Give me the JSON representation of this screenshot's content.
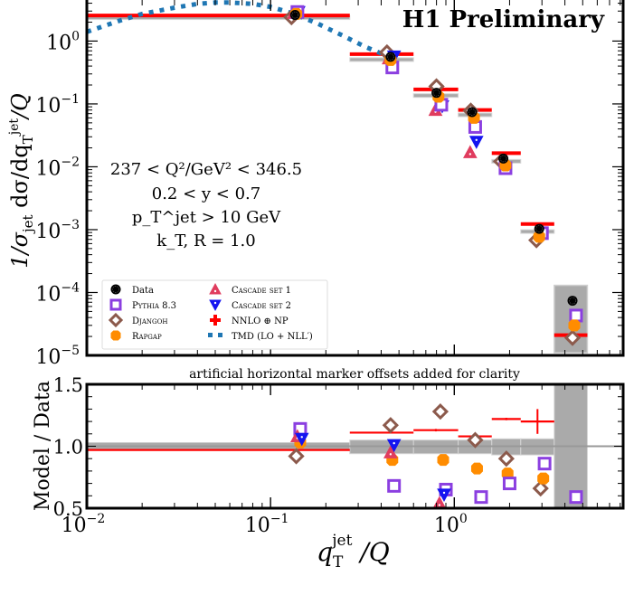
{
  "chart_data": [
    {
      "type": "scatter",
      "panel": "main",
      "title": "",
      "badge": "H1 Preliminary",
      "xlabel": "q_T^jet / Q",
      "ylabel": "1/σ_jet dσ/dq_T^jet/Q",
      "xscale": "log",
      "yscale": "log",
      "xlim": [
        0.01,
        8.3
      ],
      "ylim": [
        1e-05,
        4.5
      ],
      "y_ticks": [
        {
          "value": 1,
          "label": "10^0",
          "base": "10",
          "exp": "0"
        },
        {
          "value": 0.1,
          "label": "10^-1",
          "base": "10",
          "exp": "−1"
        },
        {
          "value": 0.01,
          "label": "10^-2",
          "base": "10",
          "exp": "−2"
        },
        {
          "value": 0.001,
          "label": "10^-3",
          "base": "10",
          "exp": "−3"
        },
        {
          "value": 0.0001,
          "label": "10^-4",
          "base": "10",
          "exp": "−4"
        },
        {
          "value": 1e-05,
          "label": "10^-5",
          "base": "10",
          "exp": "−5"
        }
      ],
      "annotations": [
        "237 < Q²/GeV² < 346.5",
        "0.2 < y < 0.7",
        "p_T^jet > 10 GeV",
        "k_T, R = 1.0"
      ],
      "bins": [
        [
          0.01,
          0.27
        ],
        [
          0.27,
          0.6
        ],
        [
          0.6,
          1.05
        ],
        [
          1.05,
          1.6
        ],
        [
          1.6,
          2.3
        ],
        [
          2.3,
          3.5
        ],
        [
          3.5,
          5.3
        ]
      ],
      "data": {
        "name": "Data",
        "x": [
          0.136,
          0.45,
          0.8,
          1.25,
          1.85,
          2.9,
          4.4
        ],
        "y": [
          2.6,
          0.56,
          0.15,
          0.074,
          0.0135,
          0.00103,
          7.4e-05
        ],
        "syst_band": [
          [
            2.45,
            2.75
          ],
          [
            0.52,
            0.59
          ],
          [
            0.14,
            0.16
          ],
          [
            0.069,
            0.078
          ],
          [
            0.0125,
            0.0145
          ],
          [
            0.00095,
            0.0011
          ],
          [
            1.1e-05,
            0.00013
          ]
        ]
      },
      "series": [
        {
          "name": "Pythia 8.3",
          "marker": "square",
          "color": "#8b3fe0",
          "x": [
            0.14,
            0.46,
            0.85,
            1.3,
            1.9,
            3.0,
            4.6
          ],
          "y": [
            2.9,
            0.38,
            0.097,
            0.043,
            0.0095,
            0.00088,
            4.3e-05
          ]
        },
        {
          "name": "Djangoh",
          "marker": "diamond",
          "color": "#8c5a4c",
          "x": [
            0.13,
            0.43,
            0.8,
            1.23,
            1.8,
            2.8,
            4.4
          ],
          "y": [
            2.4,
            0.66,
            0.19,
            0.078,
            0.0122,
            0.00068,
            1.9e-05
          ]
        },
        {
          "name": "Rapgap",
          "marker": "cross-blob",
          "color": "#ff8c00",
          "x": [
            0.138,
            0.45,
            0.82,
            1.28,
            1.9,
            2.9,
            4.5
          ],
          "y": [
            2.7,
            0.5,
            0.13,
            0.06,
            0.0105,
            0.00077,
            3e-05
          ]
        },
        {
          "name": "Cascade set 1",
          "marker": "triangle-up",
          "color": "#e03c5e",
          "x": [
            0.134,
            0.44,
            0.79,
            1.22
          ],
          "y": [
            2.8,
            0.53,
            0.08,
            0.017
          ]
        },
        {
          "name": "Cascade set 2",
          "marker": "triangle-down",
          "color": "#1515f0",
          "x": [
            0.142,
            0.47,
            0.86,
            1.32
          ],
          "y": [
            2.9,
            0.57,
            0.092,
            0.025
          ]
        },
        {
          "name": "NNLO ⊕ NP",
          "marker": "hline",
          "color": "#ff0000",
          "bins": [
            [
              0.01,
              0.27
            ],
            [
              0.27,
              0.6
            ],
            [
              0.6,
              1.05
            ],
            [
              1.05,
              1.6
            ],
            [
              1.6,
              2.3
            ],
            [
              2.3,
              3.5
            ],
            [
              3.5,
              5.3
            ]
          ],
          "y": [
            2.55,
            0.62,
            0.17,
            0.08,
            0.0165,
            0.00123,
            2.1e-05
          ]
        },
        {
          "name": "TMD (LO + NLL′)",
          "marker": "dotted-line",
          "color": "#1f77b4",
          "x": [
            0.01,
            0.015,
            0.02,
            0.03,
            0.04,
            0.05,
            0.06,
            0.08,
            0.1,
            0.13,
            0.18,
            0.25,
            0.33,
            0.42
          ],
          "y": [
            1.4,
            2.1,
            2.7,
            3.4,
            3.9,
            4.1,
            4.1,
            3.9,
            3.5,
            2.8,
            1.9,
            1.2,
            0.8,
            0.6
          ]
        }
      ],
      "legend": {
        "placement": "lower-left",
        "entries": [
          {
            "label": "Data",
            "key": "data"
          },
          {
            "label": "Pythia 8.3",
            "key": "pythia"
          },
          {
            "label": "Djangoh",
            "key": "djangoh"
          },
          {
            "label": "Rapgap",
            "key": "rapgap"
          },
          {
            "label": "Cascade set 1",
            "key": "cascade1"
          },
          {
            "label": "Cascade set 2",
            "key": "cascade2"
          },
          {
            "label": "NNLO ⊕ NP",
            "key": "nnlo"
          },
          {
            "label": "TMD (LO + NLL′)",
            "key": "tmd"
          }
        ]
      }
    },
    {
      "type": "scatter",
      "panel": "ratio",
      "title": "artificial horizontal marker offsets added for clarity",
      "xlabel": "q_T^jet / Q",
      "ylabel": "Model / Data",
      "xscale": "log",
      "xlim": [
        0.01,
        8.3
      ],
      "ylim": [
        0.5,
        1.5
      ],
      "x_ticks": [
        {
          "value": 0.01,
          "base": "10",
          "exp": "−2"
        },
        {
          "value": 0.1,
          "base": "10",
          "exp": "−1"
        },
        {
          "value": 1,
          "base": "10",
          "exp": "0"
        }
      ],
      "y_ticks": [
        {
          "value": 1.5,
          "label": "1.5"
        },
        {
          "value": 1.0,
          "label": "1.0"
        },
        {
          "value": 0.5,
          "label": "0.5"
        }
      ],
      "data_band": [
        [
          0.97,
          1.03
        ],
        [
          0.94,
          1.05
        ],
        [
          0.94,
          1.05
        ],
        [
          0.94,
          1.05
        ],
        [
          0.93,
          1.06
        ],
        [
          0.93,
          1.06
        ],
        [
          0.5,
          1.5
        ]
      ],
      "series": [
        {
          "name": "Pythia 8.3",
          "x": [
            0.145,
            0.47,
            0.9,
            1.4,
            2.0,
            3.1,
            4.6
          ],
          "y": [
            1.14,
            0.68,
            0.65,
            0.59,
            0.7,
            0.86,
            0.59
          ]
        },
        {
          "name": "Djangoh",
          "x": [
            0.138,
            0.45,
            0.84,
            1.3,
            1.92,
            2.95
          ],
          "y": [
            0.92,
            1.17,
            1.28,
            1.05,
            0.9,
            0.66
          ]
        },
        {
          "name": "Rapgap",
          "x": [
            0.145,
            0.46,
            0.87,
            1.33,
            1.95,
            3.05
          ],
          "y": [
            1.03,
            0.89,
            0.89,
            0.82,
            0.78,
            0.74
          ]
        },
        {
          "name": "Cascade set 1",
          "x": [
            0.14,
            0.45,
            0.83
          ],
          "y": [
            1.08,
            0.95,
            0.54
          ]
        },
        {
          "name": "Cascade set 2",
          "x": [
            0.148,
            0.47,
            0.88
          ],
          "y": [
            1.06,
            1.01,
            0.61
          ]
        },
        {
          "name": "NNLO ⊕ NP",
          "bins": [
            [
              0.01,
              0.27
            ],
            [
              0.27,
              0.6
            ],
            [
              0.6,
              1.05
            ],
            [
              1.05,
              1.6
            ],
            [
              1.6,
              2.3
            ],
            [
              2.3,
              3.5
            ]
          ],
          "y": [
            0.97,
            1.11,
            1.13,
            1.08,
            1.22,
            1.2
          ],
          "err": [
            0.0,
            0.0,
            0.01,
            0.0,
            0.01,
            0.1
          ]
        }
      ]
    }
  ]
}
